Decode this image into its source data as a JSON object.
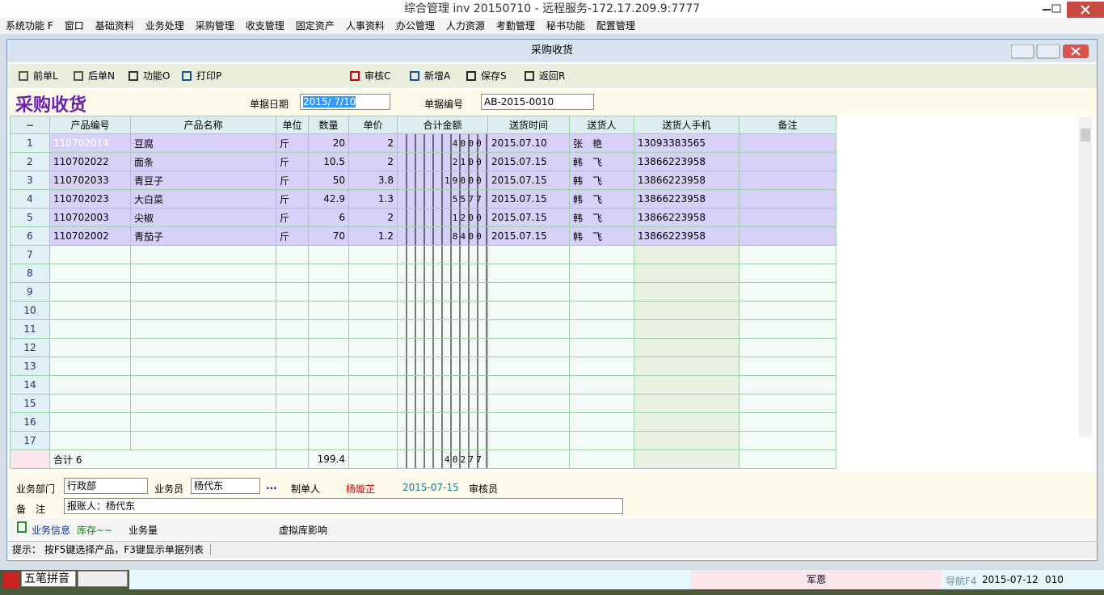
{
  "window_title": "综合管理 inv 20150710 - 远程服务-172.17.209.9:7777",
  "menu": [
    "系统功能 F",
    "窗口",
    "基础资料",
    "业务处理",
    "采购管理",
    "收支管理",
    "固定资产",
    "人事资料",
    "办公管理",
    "人力资源",
    "考勤管理",
    "秘书功能",
    "配置管理"
  ],
  "child_title": "采购收货",
  "toolbar_left": [
    "前单L",
    "后单N",
    "功能O",
    "打印P"
  ],
  "toolbar_right": [
    "审核C",
    "新增A",
    "保存S",
    "返回R"
  ],
  "form": {
    "heading": "采购收货",
    "date_label": "单据日期",
    "date_value": "2015/ 7/10",
    "number_label": "单据编号",
    "number_value": "AB-2015-0010"
  },
  "table": {
    "headers": [
      "−",
      "产品编号",
      "产品名称",
      "单位",
      "数量",
      "单价",
      "合计金额",
      "送货时间",
      "送货人",
      "送货人手机",
      "备注"
    ],
    "rows": [
      [
        "1",
        "110702014",
        "豆腐",
        "斤",
        "20",
        "2",
        "4000",
        "2015.07.10",
        "张　艳",
        "13093383565"
      ],
      [
        "2",
        "110702022",
        "面条",
        "斤",
        "10.5",
        "2",
        "2100",
        "2015.07.15",
        "韩　飞",
        "13866223958"
      ],
      [
        "3",
        "110702033",
        "青豆子",
        "斤",
        "50",
        "3.8",
        "19000",
        "2015.07.15",
        "韩　飞",
        "13866223958"
      ],
      [
        "4",
        "110702023",
        "大白菜",
        "斤",
        "42.9",
        "1.3",
        "5577",
        "2015.07.15",
        "韩　飞",
        "13866223958"
      ],
      [
        "5",
        "110702003",
        "尖椒",
        "斤",
        "6",
        "2",
        "1200",
        "2015.07.15",
        "韩　飞",
        "13866223958"
      ],
      [
        "6",
        "110702002",
        "青茄子",
        "斤",
        "70",
        "1.2",
        "8400",
        "2015.07.15",
        "韩　飞",
        "13866223958"
      ]
    ],
    "empty_rows": [
      "7",
      "8",
      "9",
      "10",
      "11",
      "12",
      "13",
      "14",
      "15",
      "16",
      "17"
    ],
    "total": {
      "label": "合计 6",
      "quantity": "199.4",
      "amount": "40277"
    }
  },
  "footer": {
    "dept_label": "业务部门",
    "dept_value": "行政部",
    "staff_label": "业务员",
    "staff_value": "杨代东",
    "more": "...",
    "maker_label": "制单人",
    "maker_value": "杨璇芷",
    "date": "2015-07-15",
    "auditor_label": "审核员",
    "note_label": "备　注",
    "note_value": "报账人：杨代东"
  },
  "tabs": [
    "业务信息",
    "库存~~",
    "业务量",
    "虚拟库影响"
  ],
  "hint": "提示： 按F5键选择产品，F3键显示单据列表",
  "taskbar": {
    "ime": "五笔拼音",
    "user": "军恩",
    "nav": "导航F4",
    "date": "2015-07-12",
    "code": "010"
  }
}
